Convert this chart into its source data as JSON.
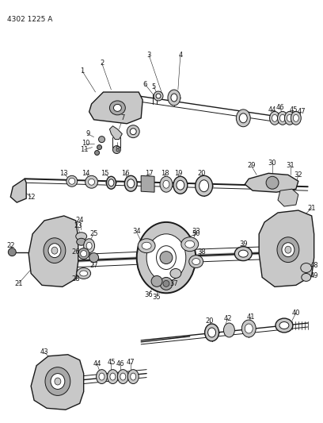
{
  "background_color": "#ffffff",
  "diagram_id": "4302 1225 A",
  "text_color": "#1a1a1a",
  "line_color": "#1a1a1a",
  "fill_light": "#c8c8c8",
  "fill_mid": "#a8a8a8",
  "fill_dark": "#888888",
  "label_fontsize": 6.0,
  "id_fontsize": 6.5,
  "figsize": [
    4.08,
    5.33
  ],
  "dpi": 100
}
